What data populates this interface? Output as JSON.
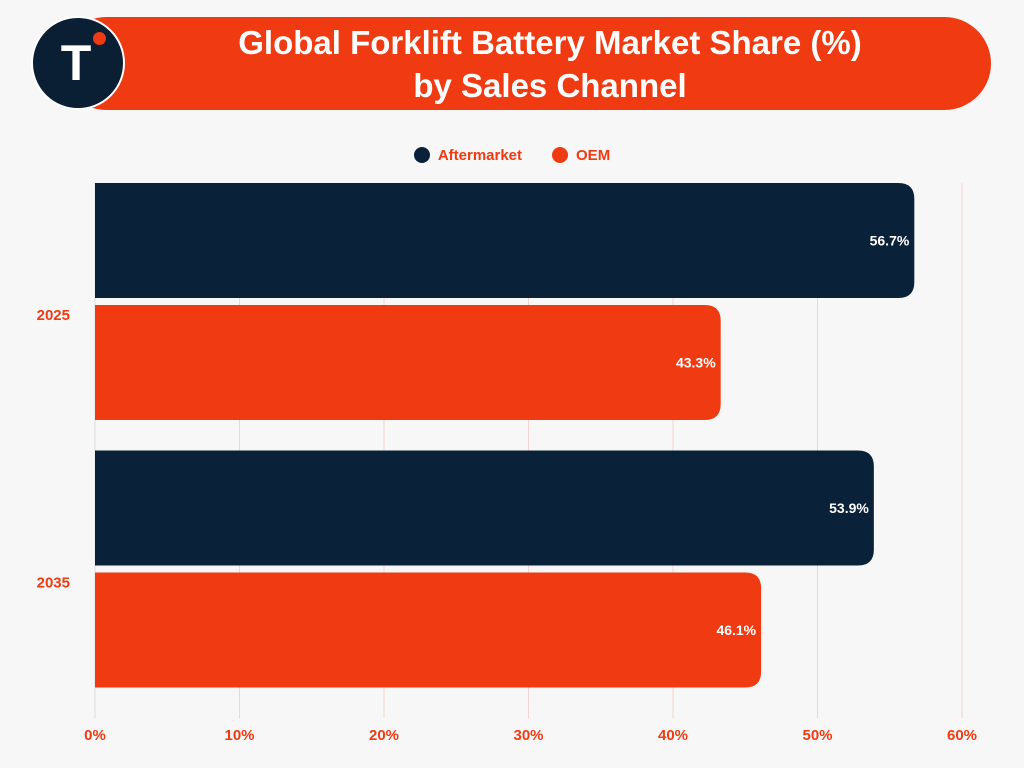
{
  "header": {
    "title_line1": "Global Forklift Battery Market Share (%)",
    "title_line2": "by Sales Channel",
    "logo_letter": "T"
  },
  "colors": {
    "aftermarket": "#0a2239",
    "oem": "#ef3a12",
    "label_text": "#ef3a12",
    "grid": "#f3d3cf"
  },
  "chart_data": {
    "type": "bar",
    "orientation": "horizontal",
    "title": "Global Forklift Battery Market Share (%) by Sales Channel",
    "categories": [
      "2025",
      "2035"
    ],
    "series": [
      {
        "name": "Aftermarket",
        "values": [
          56.7,
          53.9
        ],
        "labels": [
          "56.7%",
          "53.9%"
        ]
      },
      {
        "name": "OEM",
        "values": [
          43.3,
          46.1
        ],
        "labels": [
          "43.3%",
          "46.1%"
        ]
      }
    ],
    "xlim": [
      0,
      60
    ],
    "xticks": [
      0,
      10,
      20,
      30,
      40,
      50,
      60
    ],
    "xtick_labels": [
      "0%",
      "10%",
      "20%",
      "30%",
      "40%",
      "50%",
      "60%"
    ],
    "legend_position": "top",
    "grid": true
  }
}
